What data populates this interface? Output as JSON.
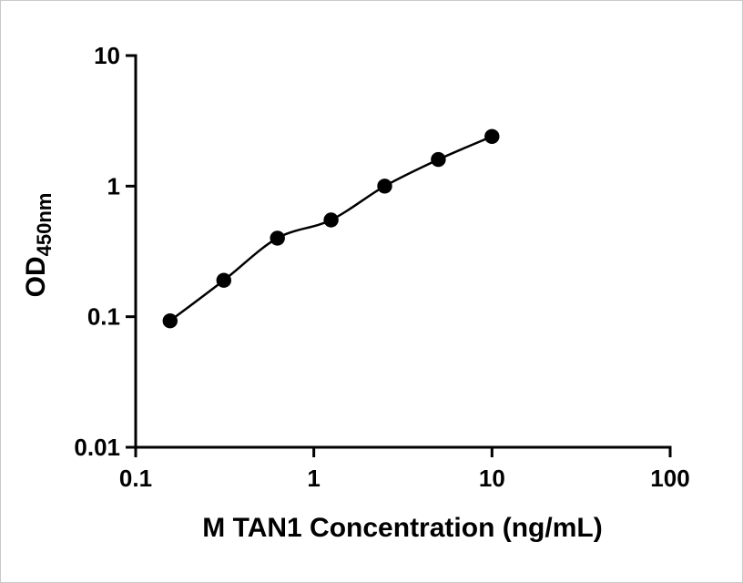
{
  "chart_data": {
    "type": "scatter",
    "x": [
      0.156,
      0.3125,
      0.625,
      1.25,
      2.5,
      5,
      10
    ],
    "y": [
      0.093,
      0.19,
      0.4,
      0.55,
      1.0,
      1.6,
      2.4
    ],
    "xlabel": "M TAN1 Concentration (ng/mL)",
    "ylabel_main": "OD",
    "ylabel_sub": "450nm",
    "x_scale": "log",
    "y_scale": "log",
    "xlim": [
      0.1,
      100
    ],
    "ylim": [
      0.01,
      10
    ],
    "x_ticks": [
      0.1,
      1,
      10,
      100
    ],
    "x_tick_labels": [
      "0.1",
      "1",
      "10",
      "100"
    ],
    "y_ticks": [
      0.01,
      0.1,
      1,
      10
    ],
    "y_tick_labels": [
      "0.01",
      "0.1",
      "1",
      "10"
    ],
    "grid": "off",
    "legend": "none",
    "marker_color": "#000000",
    "line_color": "#000000",
    "axis_color": "#000000",
    "background": "#ffffff"
  }
}
